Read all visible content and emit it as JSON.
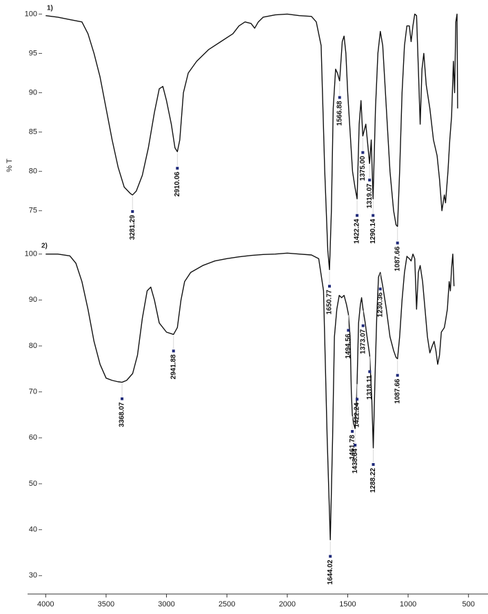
{
  "chart_data": [
    {
      "type": "line",
      "label": "1)",
      "ylabel": "% T",
      "color": "#111111",
      "xlim": [
        4150,
        350
      ],
      "ylim": [
        72,
        101
      ],
      "yticks": [
        75,
        80,
        85,
        90,
        95,
        100
      ],
      "x": [
        4000,
        3900,
        3800,
        3700,
        3650,
        3600,
        3550,
        3500,
        3450,
        3400,
        3350,
        3300,
        3281.29,
        3250,
        3200,
        3150,
        3100,
        3060,
        3030,
        3000,
        2960,
        2930,
        2910.06,
        2890,
        2860,
        2820,
        2750,
        2650,
        2550,
        2450,
        2400,
        2350,
        2300,
        2270,
        2240,
        2200,
        2100,
        2000,
        1900,
        1800,
        1760,
        1720,
        1690,
        1665,
        1650.77,
        1635,
        1620,
        1600,
        1585,
        1566.88,
        1545,
        1530,
        1515,
        1500,
        1480,
        1460,
        1440,
        1422.24,
        1405,
        1390,
        1375,
        1350,
        1319.07,
        1305,
        1290.14,
        1270,
        1250,
        1230,
        1210,
        1180,
        1150,
        1120,
        1100,
        1087.66,
        1070,
        1050,
        1030,
        1010,
        990,
        975,
        960,
        945,
        930,
        915,
        900,
        885,
        870,
        850,
        820,
        790,
        760,
        740,
        720,
        700,
        690,
        670,
        655,
        640,
        625,
        615,
        605,
        595,
        590
      ],
      "values": [
        99.8,
        99.6,
        99.3,
        99,
        97.5,
        95,
        92,
        88,
        84,
        80.5,
        78,
        77.2,
        77,
        77.5,
        79.5,
        83,
        87.5,
        90.5,
        90.8,
        89,
        86,
        83,
        82.5,
        84,
        90,
        92.5,
        94,
        95.5,
        96.5,
        97.5,
        98.5,
        99,
        98.8,
        98.2,
        99,
        99.6,
        99.9,
        100,
        99.8,
        99.7,
        99,
        96,
        80,
        70,
        67.5,
        75,
        88,
        93,
        92.5,
        91.5,
        96.5,
        97.2,
        95,
        90,
        85,
        80,
        78,
        76.5,
        86,
        89,
        84.5,
        86,
        81,
        84,
        76.5,
        88,
        95,
        97.8,
        96,
        88,
        80,
        75,
        73.2,
        73,
        80,
        90,
        96,
        98.5,
        98.5,
        96.5,
        98.5,
        100,
        99.8,
        93,
        86,
        93,
        95,
        91,
        88,
        84,
        82,
        79,
        75,
        77,
        76,
        80,
        84,
        87,
        94,
        90,
        99,
        100,
        88
      ],
      "peaks": [
        3281.29,
        2910.06,
        1650.77,
        1566.88,
        1422.24,
        {
          "value": 1375,
          "label": "1375.00"
        },
        1319.07,
        1290.14,
        1087.66
      ]
    },
    {
      "type": "line",
      "label": "2)",
      "color": "#111111",
      "xlim": [
        4150,
        350
      ],
      "ylim": [
        26,
        101
      ],
      "yticks": [
        30,
        40,
        50,
        60,
        70,
        80,
        90,
        100
      ],
      "xticks": [
        4000,
        3500,
        3000,
        2500,
        2000,
        1500,
        1000,
        500
      ],
      "x": [
        4000,
        3900,
        3800,
        3750,
        3700,
        3650,
        3600,
        3550,
        3500,
        3450,
        3400,
        3368.07,
        3330,
        3280,
        3240,
        3200,
        3160,
        3130,
        3100,
        3060,
        3000,
        2941.88,
        2910,
        2880,
        2850,
        2800,
        2700,
        2600,
        2500,
        2400,
        2300,
        2200,
        2100,
        2000,
        1900,
        1800,
        1740,
        1700,
        1670,
        1644.02,
        1625,
        1610,
        1590,
        1570,
        1550,
        1530,
        1510,
        1494.56,
        1480,
        1470,
        1461.78,
        1450,
        1438.64,
        1430,
        1422.24,
        1410,
        1395,
        1385,
        1373.07,
        1355,
        1340,
        1318.11,
        1300,
        1288.22,
        1275,
        1260,
        1245,
        1230.36,
        1210,
        1180,
        1150,
        1120,
        1100,
        1087.66,
        1070,
        1050,
        1030,
        1010,
        990,
        975,
        960,
        945,
        930,
        915,
        900,
        880,
        860,
        840,
        820,
        800,
        785,
        770,
        755,
        740,
        725,
        700,
        690,
        675,
        660,
        650,
        640,
        630,
        620
      ],
      "values": [
        100,
        100,
        99.6,
        98,
        94,
        88,
        81,
        76,
        73,
        72.5,
        72.2,
        72.1,
        72.5,
        74,
        78,
        86,
        92,
        92.8,
        90,
        85,
        83,
        82.5,
        84,
        90,
        94,
        96,
        97.5,
        98.5,
        99,
        99.4,
        99.7,
        99.9,
        100,
        100.2,
        100,
        99.8,
        99,
        92,
        60,
        37.8,
        60,
        82,
        88,
        91,
        90.5,
        91,
        89,
        87,
        82,
        70,
        65,
        63,
        62,
        66,
        72,
        85,
        89,
        90.5,
        88,
        85,
        82,
        78,
        68,
        57.8,
        72,
        86,
        95,
        96,
        93,
        88,
        82,
        79,
        77.5,
        77.2,
        82,
        90,
        96,
        99.5,
        99,
        98.5,
        100,
        99,
        88,
        96,
        97.5,
        94,
        88,
        82,
        78.5,
        80,
        81,
        79,
        76,
        78,
        83,
        84,
        85.5,
        88,
        94,
        92,
        97,
        100,
        93
      ],
      "peaks": [
        3368.07,
        2941.88,
        1644.02,
        1494.56,
        1461.78,
        1438.64,
        1422.24,
        1373.07,
        1318.11,
        1288.22,
        1230.36,
        1087.66
      ]
    }
  ]
}
